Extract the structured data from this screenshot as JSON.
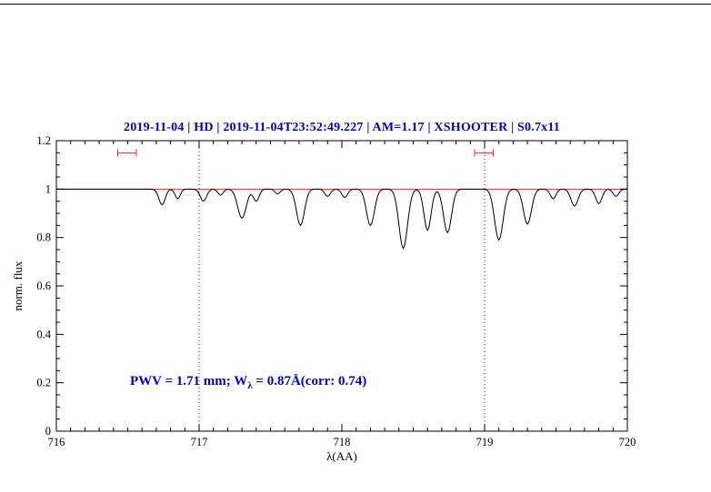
{
  "title": "2019-11-04 | HD | 2019-11-04T23:52:49.227 | AM=1.17 | XSHOOTER | S0.7x11",
  "annotation": {
    "prefix": "PWV = 1.71 mm; W",
    "lambda_sub": "λ",
    "suffix": " = 0.87Å(corr: 0.74)"
  },
  "colors": {
    "title_blue": "#0000cd",
    "reference_red": "#dd3333",
    "spectrum_black": "#000000",
    "dotted_gridline": "#333333"
  },
  "chart_data": {
    "type": "line",
    "title": "2019-11-04 | HD | 2019-11-04T23:52:49.227 | AM=1.17 | XSHOOTER | S0.7x11",
    "xlabel": "λ(AA)",
    "ylabel": "norm. flux",
    "xlim": [
      716,
      720
    ],
    "ylim": [
      0,
      1.2
    ],
    "x_ticks": [
      716,
      717,
      718,
      719,
      720
    ],
    "x_tick_labels": [
      "716",
      "717",
      "718",
      "719",
      "720"
    ],
    "x_minor_step": 0.1,
    "y_ticks": [
      0,
      0.2,
      0.4,
      0.6,
      0.8,
      1,
      1.2
    ],
    "y_tick_labels": [
      "0",
      "0.2",
      "0.4",
      "0.6",
      "0.8",
      "1",
      "1.2"
    ],
    "y_minor_step": 0.05,
    "grid": "off",
    "legend": "none",
    "reference_line_y": 1.0,
    "dotted_vlines": [
      717,
      719
    ],
    "range_markers": [
      {
        "x1": 716.43,
        "x2": 716.56,
        "y": 1.15
      },
      {
        "x1": 718.93,
        "x2": 719.06,
        "y": 1.15
      }
    ],
    "continuum": 1.0,
    "sample_step": 0.01,
    "absorption_lines": [
      {
        "center": 716.74,
        "depth": 0.065,
        "sigma": 0.022
      },
      {
        "center": 716.85,
        "depth": 0.04,
        "sigma": 0.018
      },
      {
        "center": 717.03,
        "depth": 0.05,
        "sigma": 0.022
      },
      {
        "center": 717.15,
        "depth": 0.025,
        "sigma": 0.018
      },
      {
        "center": 717.3,
        "depth": 0.12,
        "sigma": 0.03
      },
      {
        "center": 717.4,
        "depth": 0.05,
        "sigma": 0.02
      },
      {
        "center": 717.55,
        "depth": 0.02,
        "sigma": 0.018
      },
      {
        "center": 717.71,
        "depth": 0.15,
        "sigma": 0.028
      },
      {
        "center": 717.9,
        "depth": 0.03,
        "sigma": 0.02
      },
      {
        "center": 718.02,
        "depth": 0.035,
        "sigma": 0.02
      },
      {
        "center": 718.2,
        "depth": 0.15,
        "sigma": 0.028
      },
      {
        "center": 718.43,
        "depth": 0.245,
        "sigma": 0.03
      },
      {
        "center": 718.6,
        "depth": 0.17,
        "sigma": 0.025
      },
      {
        "center": 718.74,
        "depth": 0.18,
        "sigma": 0.028
      },
      {
        "center": 719.1,
        "depth": 0.21,
        "sigma": 0.03
      },
      {
        "center": 719.3,
        "depth": 0.145,
        "sigma": 0.028
      },
      {
        "center": 719.48,
        "depth": 0.04,
        "sigma": 0.02
      },
      {
        "center": 719.63,
        "depth": 0.07,
        "sigma": 0.025
      },
      {
        "center": 719.8,
        "depth": 0.06,
        "sigma": 0.022
      },
      {
        "center": 719.92,
        "depth": 0.03,
        "sigma": 0.02
      }
    ]
  }
}
